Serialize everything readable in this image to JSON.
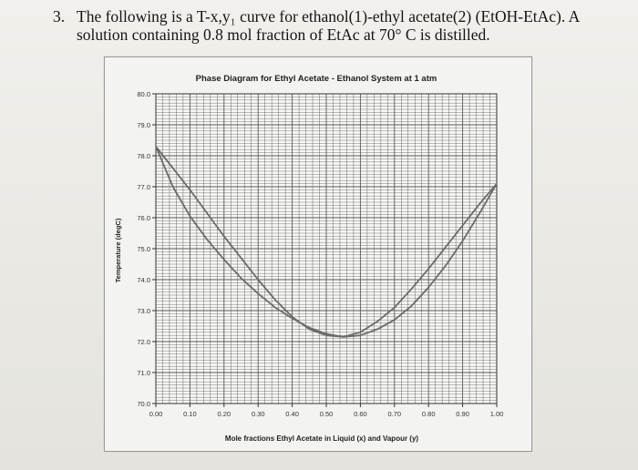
{
  "question": {
    "number": "3.",
    "line1": "The following is a T-x,y₁ curve for ethanol(1)-ethyl acetate(2) (EtOH-EtAc). A",
    "line2": "solution containing 0.8 mol fraction of EtAc at 70° C is distilled."
  },
  "chart_data": {
    "type": "line",
    "title": "Phase Diagram for Ethyl Acetate - Ethanol System at 1 atm",
    "xlabel": "Mole fractions Ethyl Acetate in Liquid (x) and Vapour (y)",
    "ylabel": "Temperature (degC)",
    "xlim": [
      0.0,
      1.0
    ],
    "ylim": [
      70.0,
      80.0
    ],
    "x_ticks": [
      "0.00",
      "0.10",
      "0.20",
      "0.30",
      "0.40",
      "0.50",
      "0.60",
      "0.70",
      "0.80",
      "0.90",
      "1.00"
    ],
    "y_ticks": [
      "70.0",
      "71.0",
      "72.0",
      "73.0",
      "74.0",
      "75.0",
      "76.0",
      "77.0",
      "78.0",
      "79.0",
      "80.0"
    ],
    "grid": true,
    "series": [
      {
        "x": [
          0.0,
          0.05,
          0.1,
          0.15,
          0.2,
          0.25,
          0.3,
          0.35,
          0.4,
          0.45,
          0.5,
          0.55,
          0.6,
          0.65,
          0.7,
          0.75,
          0.8,
          0.85,
          0.9,
          0.95,
          1.0
        ],
        "y": [
          78.3,
          77.0,
          76.05,
          75.3,
          74.65,
          74.05,
          73.55,
          73.1,
          72.75,
          72.45,
          72.25,
          72.15,
          72.2,
          72.4,
          72.7,
          73.15,
          73.75,
          74.45,
          75.25,
          76.15,
          77.1
        ]
      },
      {
        "x": [
          0.0,
          0.05,
          0.1,
          0.15,
          0.2,
          0.25,
          0.3,
          0.35,
          0.4,
          0.45,
          0.5,
          0.55,
          0.6,
          0.65,
          0.7,
          0.75,
          0.8,
          0.85,
          0.9,
          0.95,
          1.0
        ],
        "y": [
          78.3,
          77.6,
          76.9,
          76.15,
          75.4,
          74.7,
          74.0,
          73.35,
          72.8,
          72.4,
          72.2,
          72.15,
          72.3,
          72.65,
          73.1,
          73.7,
          74.35,
          75.05,
          75.75,
          76.45,
          77.1
        ]
      }
    ],
    "line_color": "#6b6b6b",
    "grid_color": "#5a5a5a"
  }
}
